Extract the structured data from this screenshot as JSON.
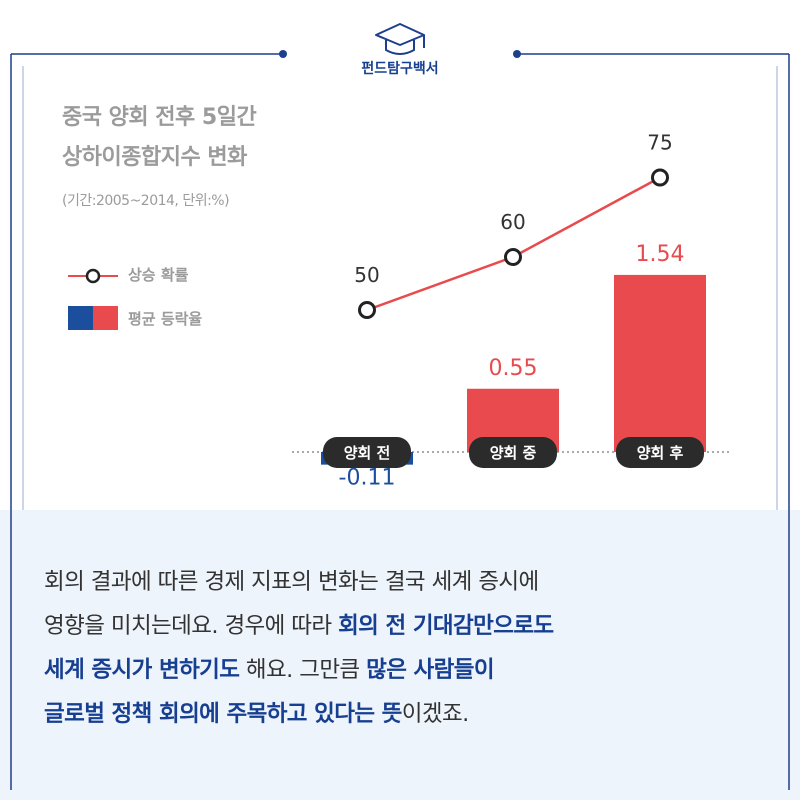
{
  "brand": {
    "name": "펀드탐구백서",
    "icon": "graduation-cap-icon"
  },
  "chart_data": {
    "type": "bar",
    "title_lines": [
      "중국 양회 전후 5일간",
      "상하이종합지수 변화"
    ],
    "subtitle": "(기간:2005~2014, 단위:%)",
    "categories": [
      "양회 전",
      "양회 중",
      "양회 후"
    ],
    "legend": [
      {
        "name": "상승 확률",
        "marker": "line-circle",
        "color": "#e84a4e"
      },
      {
        "name": "평균 등락율",
        "marker": "bar",
        "colors": [
          "#1b4f9e",
          "#e84a4e"
        ]
      }
    ],
    "bar_series": {
      "name": "평균 등락율",
      "values": [
        -0.11,
        0.55,
        1.54
      ],
      "labels": [
        "-0.11",
        "0.55",
        "1.54"
      ],
      "positive_color": "#e84a4e",
      "negative_color": "#1b4f9e",
      "positive_label_color": "#e84a4e",
      "negative_label_color": "#1b4f9e"
    },
    "line_series": {
      "name": "상승 확률",
      "values": [
        50,
        60,
        75
      ],
      "labels": [
        "50",
        "60",
        "75"
      ],
      "color": "#e84a4e"
    },
    "grid": false,
    "legend_position": "left"
  },
  "body": {
    "segments": [
      {
        "text": "회의 결과에 따른 경제 지표의 변화는 결국 세계 증시에",
        "highlight": false,
        "br": true
      },
      {
        "text": "영향을 미치는데요. 경우에 따라 ",
        "highlight": false,
        "br": false
      },
      {
        "text": "회의 전 기대감만으로도",
        "highlight": true,
        "br": true
      },
      {
        "text": "세계 증시가 변하기도",
        "highlight": true,
        "br": false
      },
      {
        "text": " 해요. 그만큼 ",
        "highlight": false,
        "br": false
      },
      {
        "text": "많은 사람들이",
        "highlight": true,
        "br": true
      },
      {
        "text": "글로벌 정책 회의에 주목하고 있다는 뜻",
        "highlight": true,
        "br": false
      },
      {
        "text": "이겠죠.",
        "highlight": false,
        "br": false
      }
    ]
  },
  "colors": {
    "frame": "#1d3f8c",
    "category_pill": "#2b2b2b",
    "muted_text": "#9b9b9b",
    "highlight_text": "#173f91",
    "bottom_bg": "#eef4fb"
  }
}
